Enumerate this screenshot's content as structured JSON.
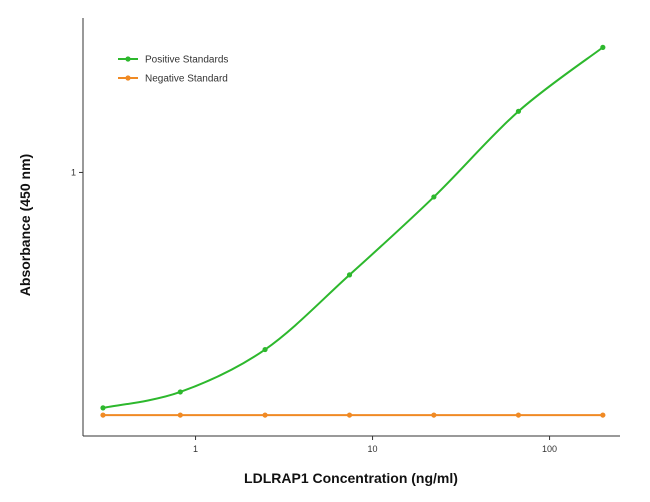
{
  "chart_data": {
    "type": "line",
    "xlabel": "LDLRAP1 Concentration (ng/ml)",
    "ylabel": "Absorbance (450 nm)",
    "x_scale": "log",
    "y_scale": "log",
    "xlim": [
      0.3,
      250
    ],
    "ylim": [
      0.06,
      5.2
    ],
    "x_ticks": [
      {
        "value": 1,
        "label": "1"
      },
      {
        "value": 10,
        "label": "10"
      },
      {
        "value": 100,
        "label": "100"
      }
    ],
    "y_ticks": [
      {
        "value": 1,
        "label": "1"
      }
    ],
    "grid": false,
    "legend_position": "top-left",
    "series": [
      {
        "name": "Positive Standards",
        "color": "#2db82d",
        "marker": "circle",
        "x": [
          0.3,
          0.82,
          2.47,
          7.41,
          22.2,
          66.7,
          200
        ],
        "y": [
          0.081,
          0.096,
          0.151,
          0.335,
          0.77,
          1.92,
          3.8
        ]
      },
      {
        "name": "Negative Standard",
        "color": "#f08a24",
        "marker": "circle",
        "x": [
          0.3,
          0.82,
          2.47,
          7.41,
          22.2,
          66.7,
          200
        ],
        "y": [
          0.075,
          0.075,
          0.075,
          0.075,
          0.075,
          0.075,
          0.075
        ]
      }
    ]
  }
}
